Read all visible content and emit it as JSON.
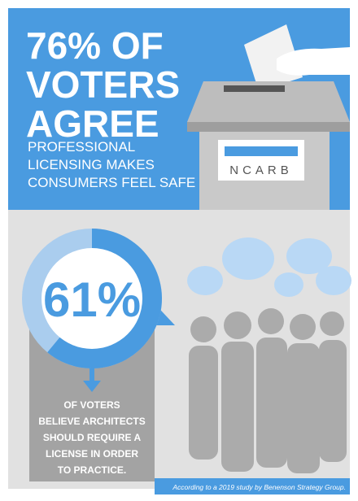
{
  "headline": {
    "lines": [
      "76% OF",
      "VOTERS",
      "AGREE"
    ],
    "subtitle_lines": [
      "PROFESSIONAL",
      "LICENSING MAKES",
      "CONSUMERS FEEL SAFE"
    ]
  },
  "ballot_box": {
    "label": "NCARB"
  },
  "stat": {
    "value": 61,
    "label": "61%",
    "description_lines": [
      "OF VOTERS",
      "BELIEVE ARCHITECTS",
      "SHOULD REQUIRE A",
      "LICENSE IN ORDER",
      "TO PRACTICE."
    ]
  },
  "footnote": "According to a 2019 study by Benenson Strategy Group."
}
